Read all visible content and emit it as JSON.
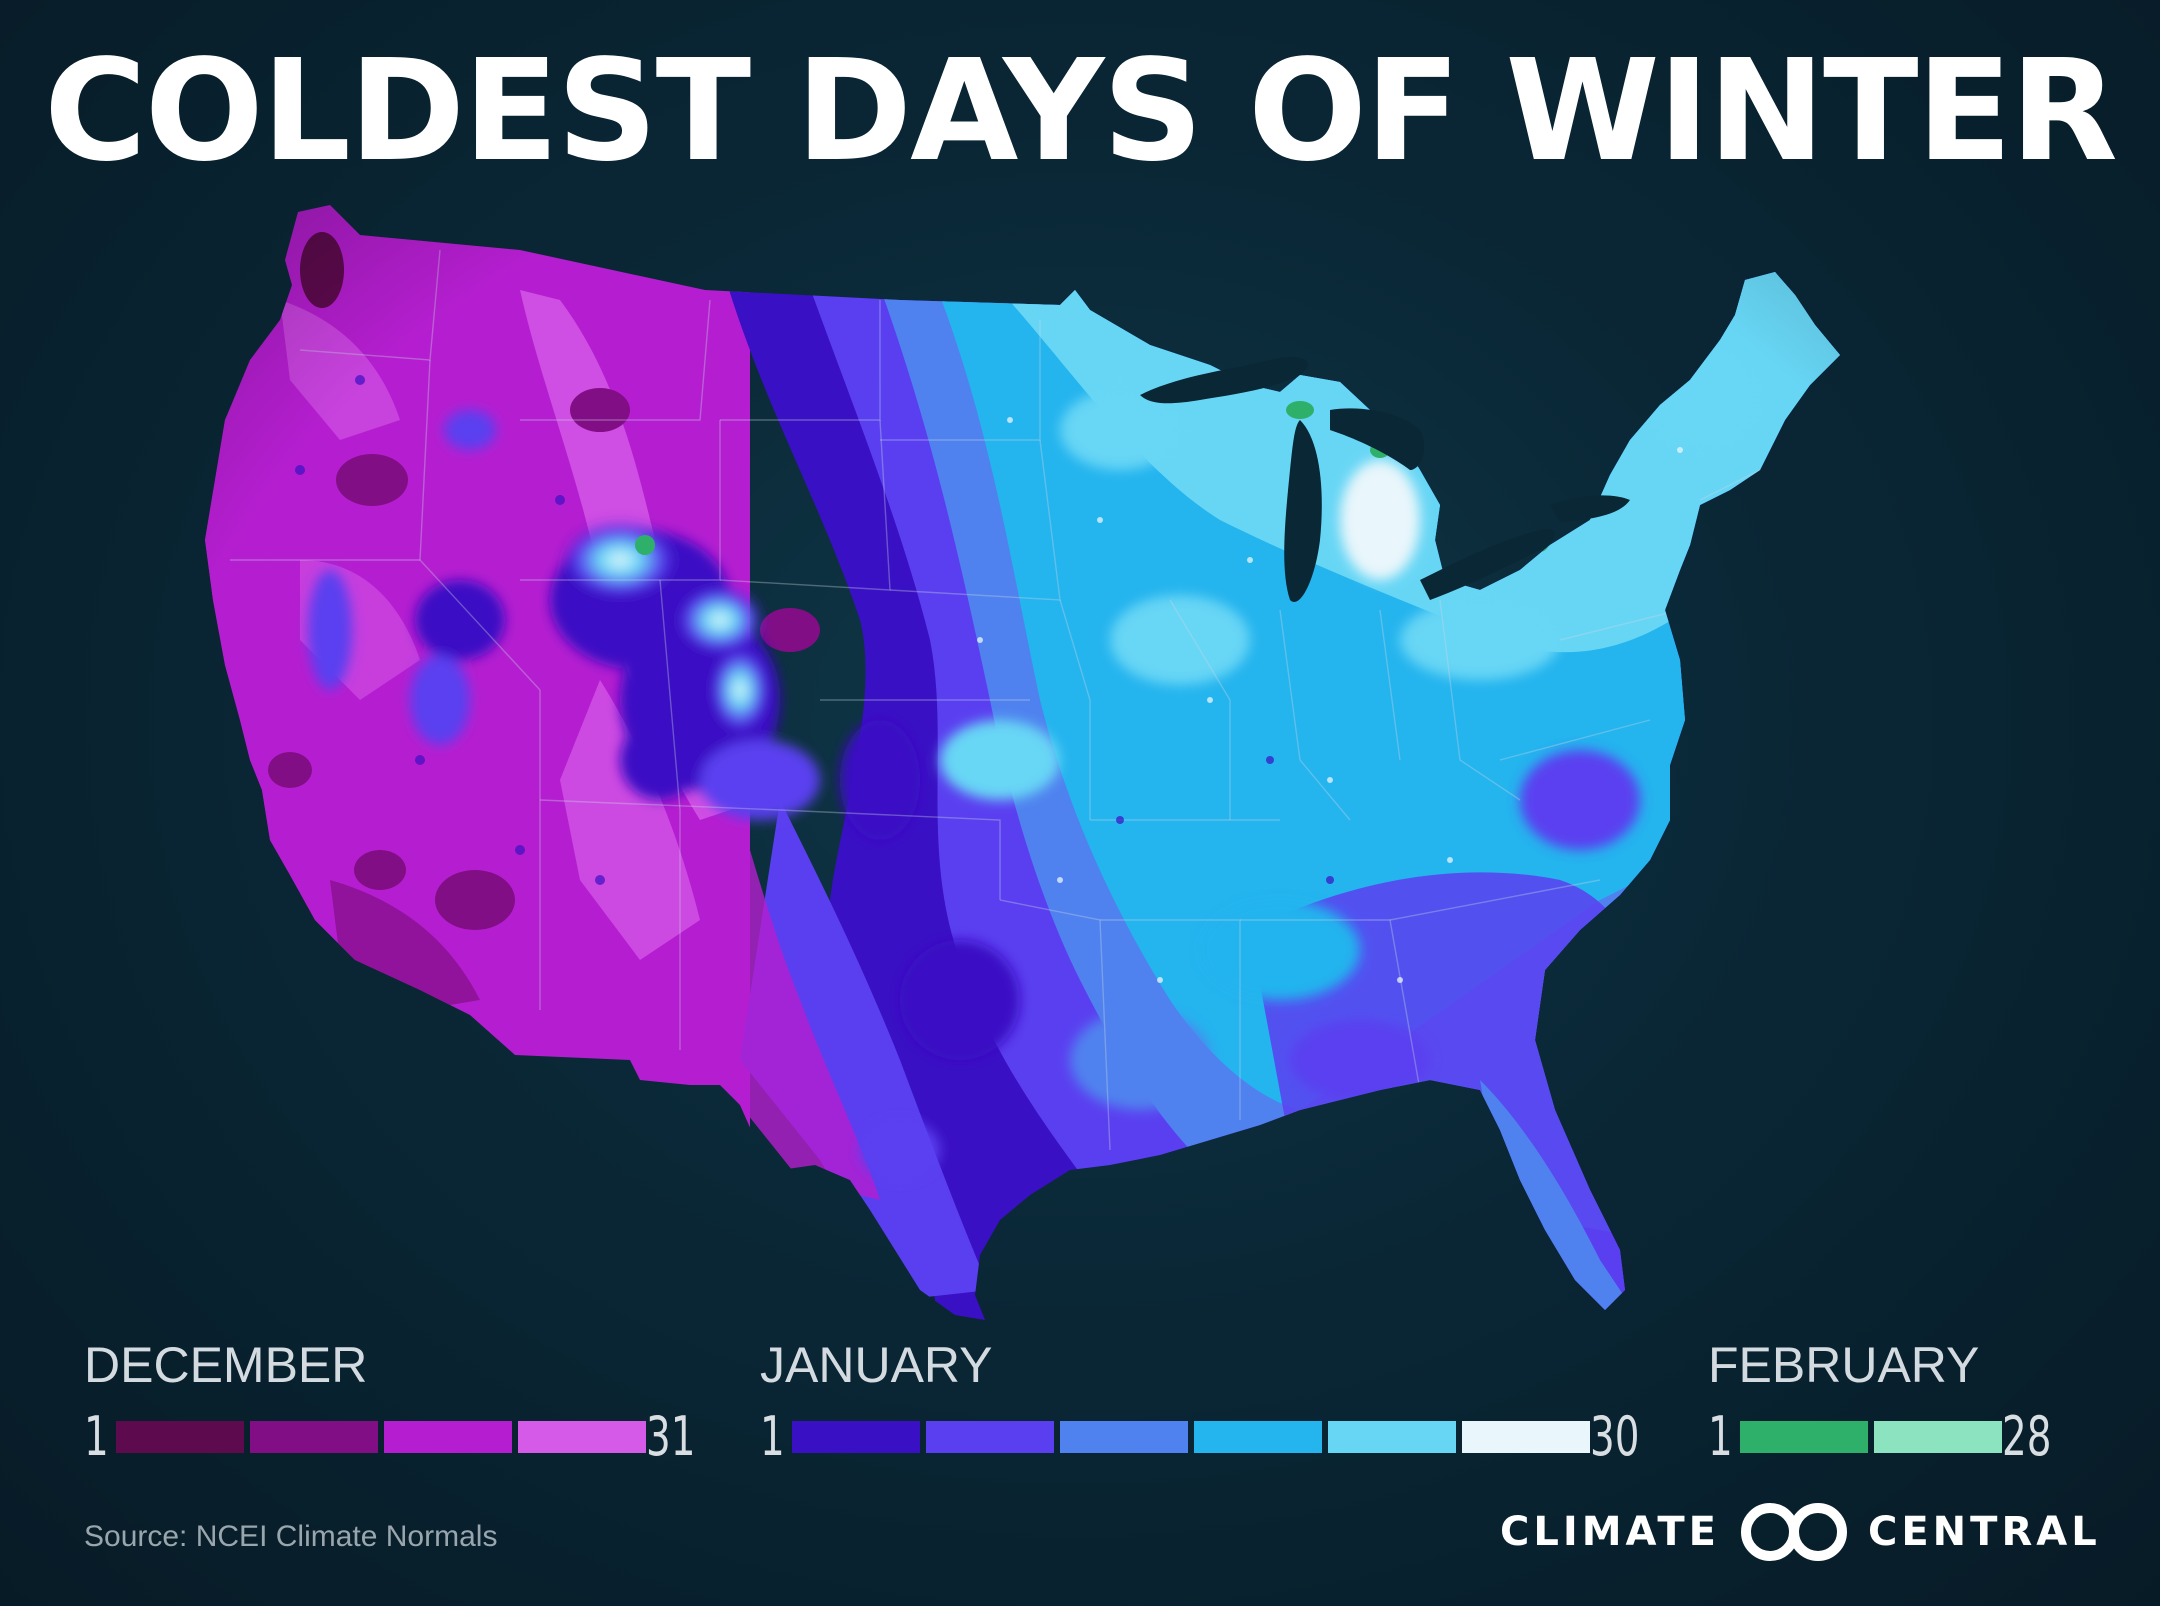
{
  "title": "COLDEST DAYS OF WINTER",
  "legend": [
    {
      "month": "DECEMBER",
      "start": "1",
      "end": "31",
      "colors": [
        "#5e0a4e",
        "#820e86",
        "#b51ed0",
        "#d65ae8"
      ]
    },
    {
      "month": "JANUARY",
      "start": "1",
      "end": "30",
      "colors": [
        "#3a10c4",
        "#5a3ff0",
        "#4f82ef",
        "#24b4ee",
        "#67d6f5",
        "#e9f6fb"
      ]
    },
    {
      "month": "FEBRUARY",
      "start": "1",
      "end": "28",
      "colors": [
        "#2fb06a",
        "#8be3bf"
      ]
    }
  ],
  "source": "Source: NCEI Climate Normals",
  "logo": {
    "left": "CLIMATE",
    "right": "CENTRAL",
    "icon": "climate-central-rings-icon"
  }
}
